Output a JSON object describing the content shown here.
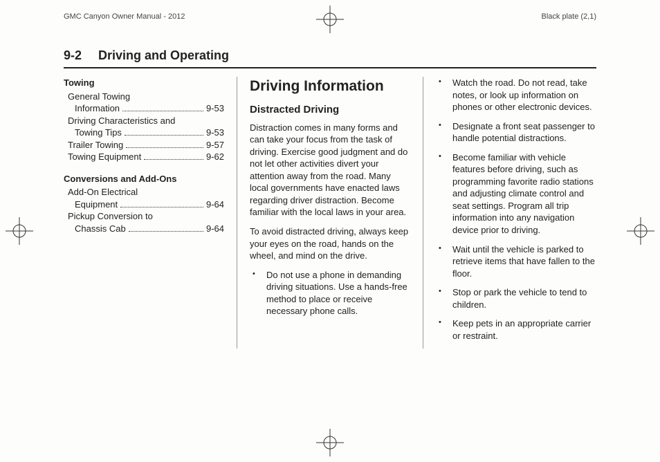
{
  "top": {
    "left": "GMC Canyon Owner Manual - 2012",
    "right": "Black plate (2,1)"
  },
  "pageHeader": {
    "number": "9-2",
    "title": "Driving and Operating"
  },
  "toc": [
    {
      "heading": "Towing",
      "items": [
        {
          "label": "General Towing",
          "cont": "Information",
          "indent": true,
          "page": "9-53"
        },
        {
          "label": "Driving Characteristics and",
          "cont": "Towing Tips",
          "indent": true,
          "page": "9-53"
        },
        {
          "label": "Trailer Towing",
          "page": "9-57"
        },
        {
          "label": "Towing Equipment",
          "page": "9-62"
        }
      ]
    },
    {
      "heading": "Conversions and Add-Ons",
      "items": [
        {
          "label": "Add-On Electrical",
          "cont": "Equipment",
          "indent": true,
          "page": "9-64"
        },
        {
          "label": "Pickup Conversion to",
          "cont": "Chassis Cab",
          "indent": true,
          "page": "9-64"
        }
      ]
    }
  ],
  "col2": {
    "h1": "Driving Information",
    "h2": "Distracted Driving",
    "p1": "Distraction comes in many forms and can take your focus from the task of driving. Exercise good judgment and do not let other activities divert your attention away from the road. Many local governments have enacted laws regarding driver distraction. Become familiar with the local laws in your area.",
    "p2": "To avoid distracted driving, always keep your eyes on the road, hands on the wheel, and mind on the drive.",
    "bullets": [
      "Do not use a phone in demanding driving situations. Use a hands-free method to place or receive necessary phone calls."
    ]
  },
  "col3": {
    "bullets": [
      "Watch the road. Do not read, take notes, or look up information on phones or other electronic devices.",
      "Designate a front seat passenger to handle potential distractions.",
      "Become familiar with vehicle features before driving, such as programming favorite radio stations and adjusting climate control and seat settings. Program all trip information into any navigation device prior to driving.",
      "Wait until the vehicle is parked to retrieve items that have fallen to the floor.",
      "Stop or park the vehicle to tend to children.",
      "Keep pets in an appropriate carrier or restraint."
    ]
  }
}
